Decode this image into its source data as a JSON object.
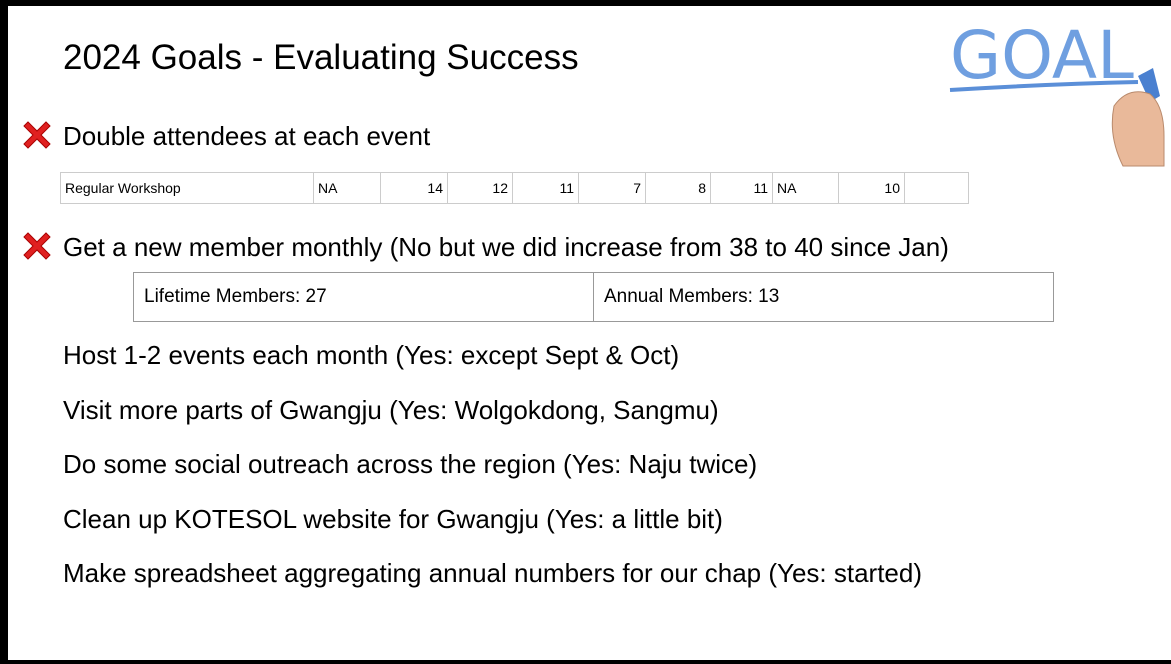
{
  "title": "2024 Goals - Evaluating Success",
  "logo": "GOAL",
  "goals": [
    {
      "text": "Double attendees at each event"
    },
    {
      "text": "Get a new member monthly (No but we did increase from 38 to 40 since Jan)"
    },
    {
      "text": "Host 1-2 events each month (Yes: except Sept & Oct)"
    },
    {
      "text": "Visit more parts of Gwangju (Yes: Wolgokdong, Sangmu)"
    },
    {
      "text": "Do some social outreach across the region (Yes: Naju twice)"
    },
    {
      "text": "Clean up KOTESOL website for Gwangju (Yes: a little bit)"
    },
    {
      "text": "Make spreadsheet aggregating annual numbers for our chap (Yes: started)"
    }
  ],
  "attendance_table": {
    "rows": [
      [
        "Regular Workshop",
        "NA",
        14,
        12,
        11,
        7,
        8,
        11,
        "NA",
        10
      ]
    ]
  },
  "members_table": {
    "rows": [
      [
        "Lifetime Members: 27",
        "Annual Members: 13"
      ]
    ]
  }
}
